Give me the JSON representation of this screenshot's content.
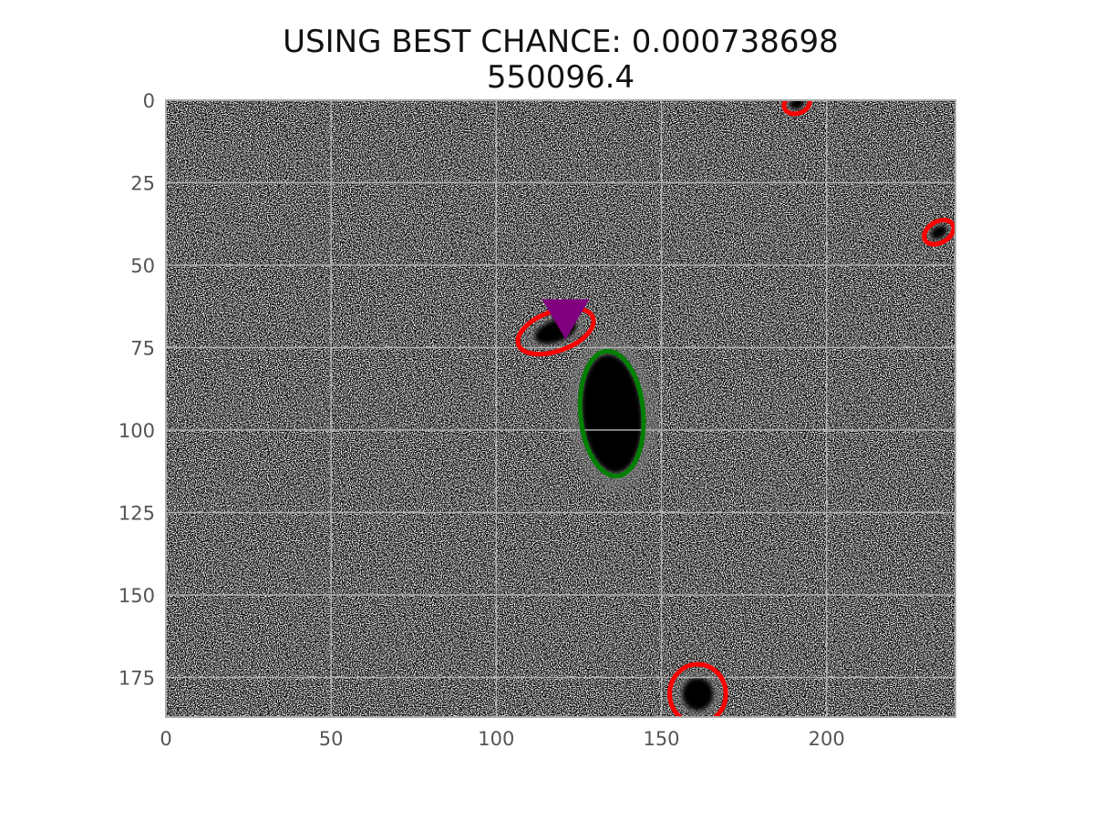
{
  "figure": {
    "title_line1": "USING BEST CHANCE: 0.000738698",
    "title_line2": "550096.4"
  },
  "chart_data": {
    "type": "image",
    "xlim": [
      0,
      239
    ],
    "ylim": [
      187,
      0
    ],
    "x_ticks": [
      0,
      50,
      100,
      150,
      200
    ],
    "y_ticks": [
      0,
      25,
      50,
      75,
      100,
      125,
      150,
      175
    ],
    "grid": true,
    "colormap": "gray_r",
    "sources": [
      {
        "x": 135,
        "y": 95,
        "rx": 9.5,
        "ry": 19,
        "angle": -5,
        "color": "#008000",
        "role": "host"
      },
      {
        "x": 118,
        "y": 70,
        "rx": 12,
        "ry": 6,
        "angle": -20,
        "color": "#ff0000",
        "role": "other"
      },
      {
        "x": 161,
        "y": 180,
        "rx": 8.5,
        "ry": 9,
        "angle": 0,
        "color": "#ff0000",
        "role": "other"
      },
      {
        "x": 191,
        "y": 1,
        "rx": 4,
        "ry": 3,
        "angle": -20,
        "color": "#ff0000",
        "role": "other"
      },
      {
        "x": 234,
        "y": 40,
        "rx": 4.8,
        "ry": 3.2,
        "angle": -30,
        "color": "#ff0000",
        "role": "other"
      }
    ],
    "marker": {
      "x": 121,
      "y": 67,
      "shape": "triangle-down",
      "color": "#800080"
    }
  }
}
